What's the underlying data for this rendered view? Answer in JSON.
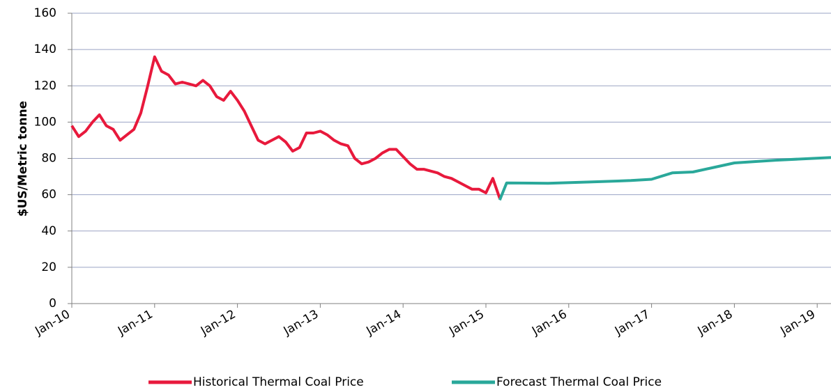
{
  "chart_data": {
    "type": "line",
    "ylabel": "$US/Metric tonne",
    "xlim": [
      "2010-01",
      "2019-03"
    ],
    "ylim": [
      0,
      160
    ],
    "yticks": [
      0,
      20,
      40,
      60,
      80,
      100,
      120,
      140,
      160
    ],
    "xticks": [
      {
        "value": "2010-01",
        "label": "Jan-10"
      },
      {
        "value": "2011-01",
        "label": "Jan-11"
      },
      {
        "value": "2012-01",
        "label": "Jan-12"
      },
      {
        "value": "2013-01",
        "label": "Jan-13"
      },
      {
        "value": "2014-01",
        "label": "Jan-14"
      },
      {
        "value": "2015-01",
        "label": "Jan-15"
      },
      {
        "value": "2016-01",
        "label": "Jan-16"
      },
      {
        "value": "2017-01",
        "label": "Jan-17"
      },
      {
        "value": "2018-01",
        "label": "Jan-18"
      },
      {
        "value": "2019-01",
        "label": "Jan-19"
      }
    ],
    "grid": true,
    "legend": "bottom",
    "series": [
      {
        "name": "Historical Thermal Coal Price",
        "color": "#e8193c",
        "x": [
          "2010-01",
          "2010-02",
          "2010-03",
          "2010-04",
          "2010-05",
          "2010-06",
          "2010-07",
          "2010-08",
          "2010-09",
          "2010-10",
          "2010-11",
          "2010-12",
          "2011-01",
          "2011-02",
          "2011-03",
          "2011-04",
          "2011-05",
          "2011-06",
          "2011-07",
          "2011-08",
          "2011-09",
          "2011-10",
          "2011-11",
          "2011-12",
          "2012-01",
          "2012-02",
          "2012-03",
          "2012-04",
          "2012-05",
          "2012-06",
          "2012-07",
          "2012-08",
          "2012-09",
          "2012-10",
          "2012-11",
          "2012-12",
          "2013-01",
          "2013-02",
          "2013-03",
          "2013-04",
          "2013-05",
          "2013-06",
          "2013-07",
          "2013-08",
          "2013-09",
          "2013-10",
          "2013-11",
          "2013-12",
          "2014-01",
          "2014-02",
          "2014-03",
          "2014-04",
          "2014-05",
          "2014-06",
          "2014-07",
          "2014-08",
          "2014-09",
          "2014-10",
          "2014-11",
          "2014-12",
          "2015-01",
          "2015-02",
          "2015-03"
        ],
        "values": [
          98,
          92,
          95,
          100,
          104,
          98,
          96,
          90,
          93,
          96,
          105,
          120,
          136,
          128,
          126,
          121,
          122,
          121,
          120,
          123,
          120,
          114,
          112,
          117,
          112,
          106,
          98,
          90,
          88,
          90,
          92,
          89,
          84,
          86,
          94,
          94,
          95,
          93,
          90,
          88,
          87,
          80,
          77,
          78,
          80,
          83,
          85,
          85,
          81,
          77,
          74,
          74,
          73,
          72,
          70,
          69,
          67,
          65,
          63,
          63,
          61,
          69,
          58
        ]
      },
      {
        "name": "Forecast Thermal Coal Price",
        "color": "#2aa89a",
        "x": [
          "2015-03",
          "2015-04",
          "2015-10",
          "2016-04",
          "2016-10",
          "2017-01",
          "2017-04",
          "2017-07",
          "2017-10",
          "2018-01",
          "2018-07",
          "2019-03"
        ],
        "values": [
          57,
          66.5,
          66.3,
          67,
          67.8,
          68.5,
          72,
          72.5,
          75,
          77.5,
          79,
          80.5
        ]
      }
    ]
  }
}
